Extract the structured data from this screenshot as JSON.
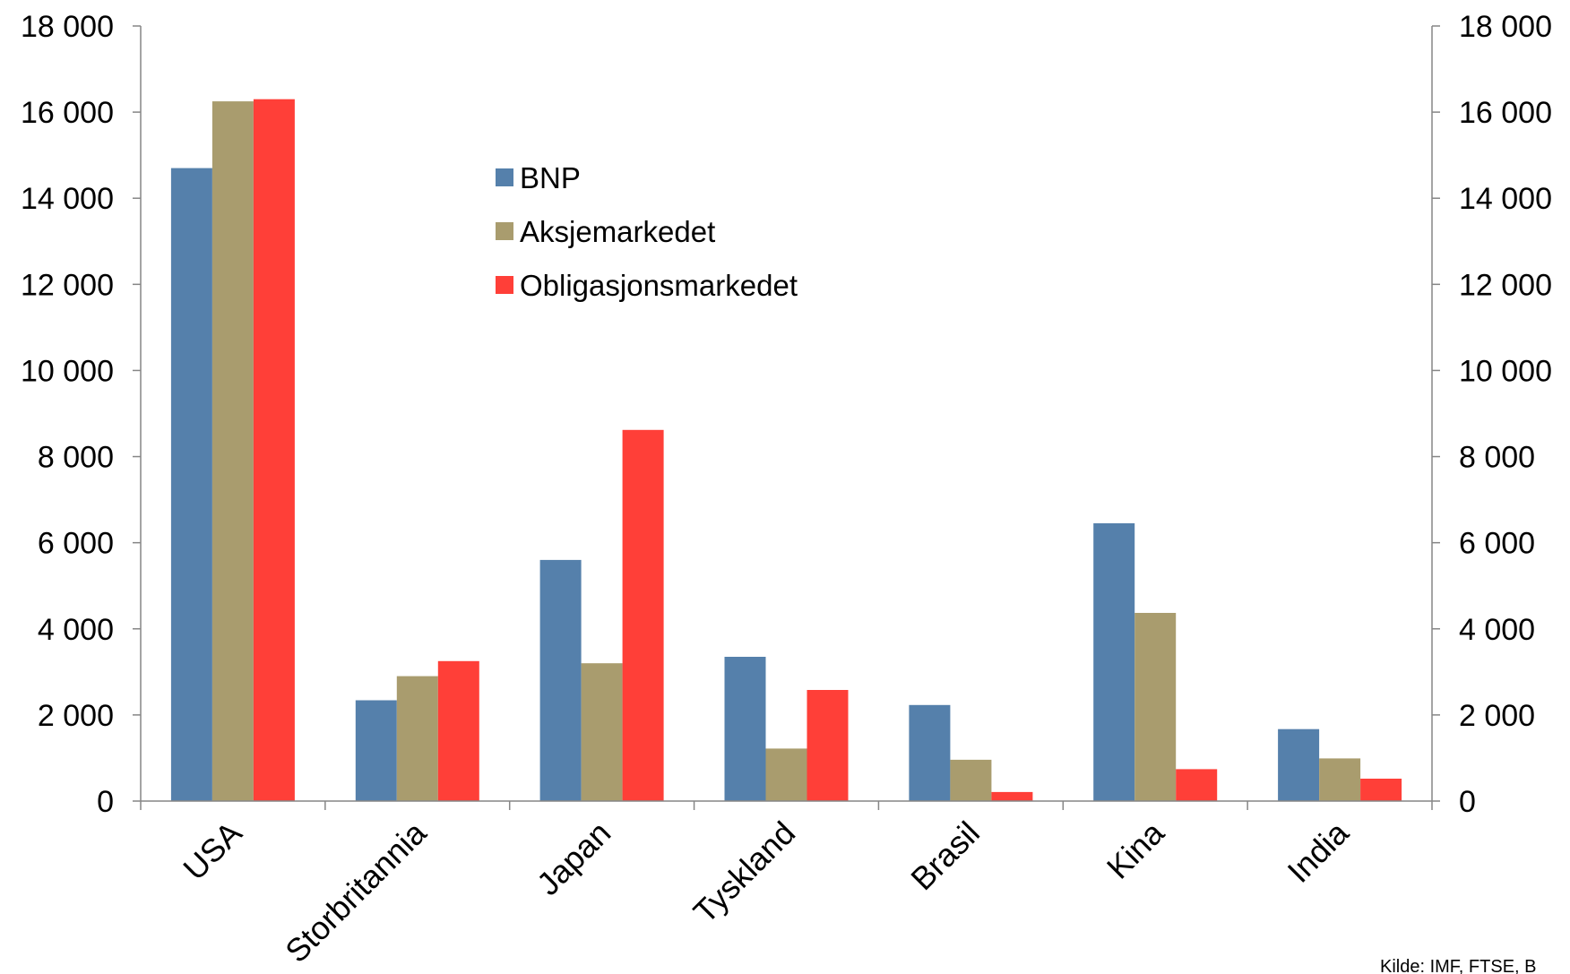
{
  "chart_data": {
    "type": "bar",
    "categories": [
      "USA",
      "Storbritannia",
      "Japan",
      "Tyskland",
      "Brasil",
      "Kina",
      "India"
    ],
    "series": [
      {
        "name": "BNP",
        "color": "#5580ab",
        "values": [
          14700,
          2340,
          5600,
          3350,
          2230,
          6450,
          1670
        ]
      },
      {
        "name": "Aksjemarkedet",
        "color": "#a99c6e",
        "values": [
          16250,
          2900,
          3200,
          1220,
          960,
          4370,
          990
        ]
      },
      {
        "name": "Obligasjonsmarkedet",
        "color": "#ff3f38",
        "values": [
          16300,
          3250,
          8620,
          2580,
          210,
          740,
          520
        ]
      }
    ],
    "ylim": [
      0,
      18000
    ],
    "yticks": [
      0,
      2000,
      4000,
      6000,
      8000,
      10000,
      12000,
      14000,
      16000,
      18000
    ],
    "ytick_labels": [
      "0",
      "2 000",
      "4 000",
      "6 000",
      "8 000",
      "10 000",
      "12 000",
      "14 000",
      "16 000",
      "18 000"
    ],
    "secondary_axis": true,
    "grid": false,
    "legend_position": "upper-center",
    "source_note": "Kilde: IMF, FTSE, B"
  }
}
